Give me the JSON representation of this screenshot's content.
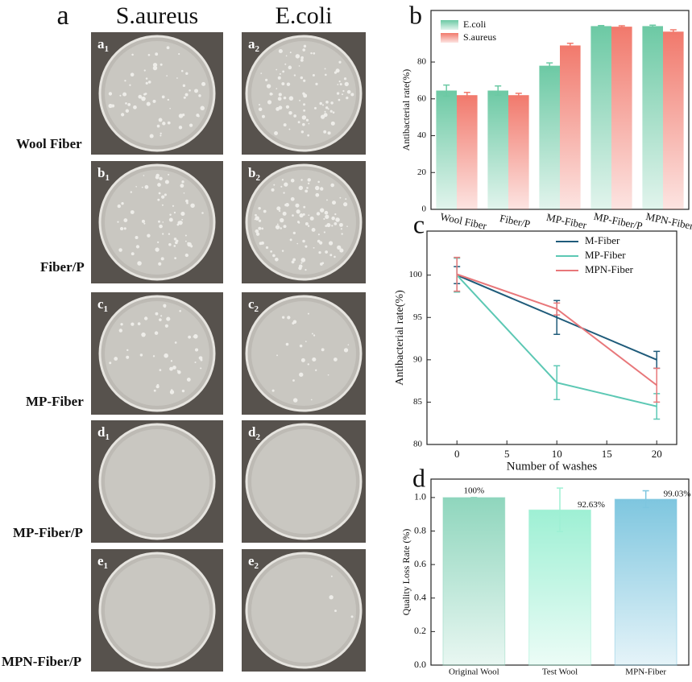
{
  "panel_a": {
    "label": "a",
    "columns": [
      "S.aureus",
      "E.coli"
    ],
    "rows": [
      {
        "name": "Wool Fiber",
        "photos": [
          {
            "letter": "a",
            "index": "1"
          },
          {
            "letter": "a",
            "index": "2"
          }
        ]
      },
      {
        "name": "Fiber/P",
        "photos": [
          {
            "letter": "b",
            "index": "1"
          },
          {
            "letter": "b",
            "index": "2"
          }
        ]
      },
      {
        "name": "MP-Fiber",
        "photos": [
          {
            "letter": "c",
            "index": "1"
          },
          {
            "letter": "c",
            "index": "2"
          }
        ]
      },
      {
        "name": "MP-Fiber/P",
        "photos": [
          {
            "letter": "d",
            "index": "1"
          },
          {
            "letter": "d",
            "index": "2"
          }
        ]
      },
      {
        "name": "MPN-Fiber/P",
        "photos": [
          {
            "letter": "e",
            "index": "1"
          },
          {
            "letter": "e",
            "index": "2"
          }
        ]
      }
    ]
  },
  "chart_data": [
    {
      "type": "bar",
      "label": "b",
      "ylabel": "Antibacterial rate(%)",
      "categories": [
        "Wool Fiber",
        "Fiber/P",
        "MP-Fiber",
        "MP-Fiber/P",
        "MPN-Fiber"
      ],
      "series": [
        {
          "name": "E.coli",
          "color": "#6cc9a4",
          "values": [
            64.5,
            64.5,
            78,
            99.5,
            99.5
          ],
          "errors": [
            3,
            2.5,
            1.5,
            0.3,
            0.5
          ]
        },
        {
          "name": "S.aureus",
          "color": "#f1796c",
          "values": [
            62,
            62,
            89,
            99.2,
            96.5
          ],
          "errors": [
            1.5,
            1,
            1.2,
            0.5,
            1
          ]
        }
      ],
      "ylim": [
        0,
        108
      ],
      "yticks": [
        0,
        20,
        40,
        60,
        80
      ],
      "legend": "top-left"
    },
    {
      "type": "line",
      "label": "c",
      "xlabel": "Number of washes",
      "ylabel": "Antibacterial rate(%)",
      "x": [
        0,
        10,
        20
      ],
      "series": [
        {
          "name": "M-Fiber",
          "color": "#1f5b7a",
          "values": [
            100,
            95,
            90
          ],
          "errors": [
            1,
            2,
            1
          ]
        },
        {
          "name": "MP-Fiber",
          "color": "#5cc8b4",
          "values": [
            100,
            87.3,
            84.5
          ],
          "errors": [
            2,
            2,
            1.5
          ]
        },
        {
          "name": "MPN-Fiber",
          "color": "#e8777a",
          "values": [
            100.1,
            96,
            87
          ],
          "errors": [
            2,
            0.7,
            2
          ]
        }
      ],
      "xlim": [
        -3,
        22
      ],
      "xticks": [
        0,
        5,
        10,
        15,
        20
      ],
      "ylim": [
        80,
        105.2
      ],
      "yticks": [
        80,
        85,
        90,
        95,
        100
      ],
      "legend": "top-right"
    },
    {
      "type": "bar",
      "label": "d",
      "ylabel": "Quality Loss Rate (%)",
      "categories": [
        "Original Wool",
        "Test Wool",
        "MPN-Fiber"
      ],
      "values": [
        1.0,
        0.9263,
        0.9903
      ],
      "value_labels": [
        "100%",
        "92.63%",
        "99.03%"
      ],
      "errors": [
        0,
        0.13,
        0.05
      ],
      "colors": [
        "#8fd6bd",
        "#9ef0d4",
        "#7ec6df"
      ],
      "ylim": [
        0,
        1.11
      ],
      "yticks": [
        {
          "value": 0,
          "label": "0.0"
        },
        0.2,
        0.4,
        0.6,
        0.8,
        {
          "value": 1,
          "label": "1.0"
        }
      ]
    }
  ]
}
